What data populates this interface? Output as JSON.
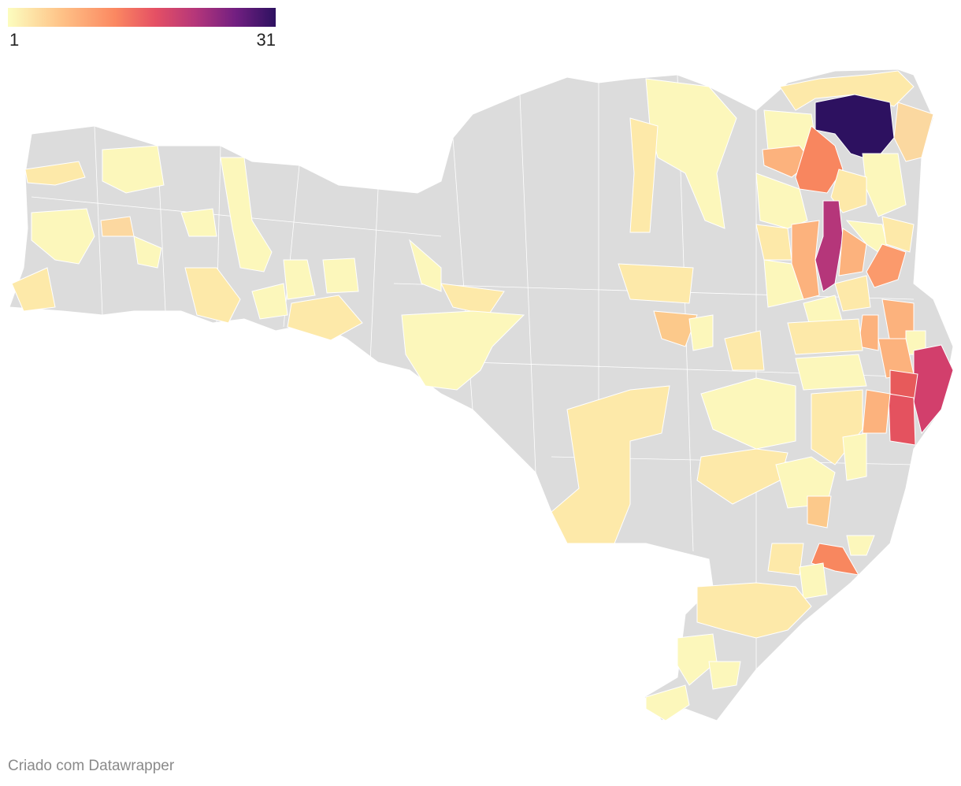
{
  "legend": {
    "min_label": "1",
    "max_label": "31",
    "min_value": 1,
    "max_value": 31,
    "color_stops": [
      "#fcfdbf",
      "#fec287",
      "#fb8861",
      "#e55064",
      "#b5367a",
      "#721f81",
      "#2d1160"
    ]
  },
  "map": {
    "region": "Santa Catarina municipalities choropleth",
    "no_data_color": "#dcdcdc",
    "border_color": "#ffffff"
  },
  "credit": "Criado com Datawrapper"
}
